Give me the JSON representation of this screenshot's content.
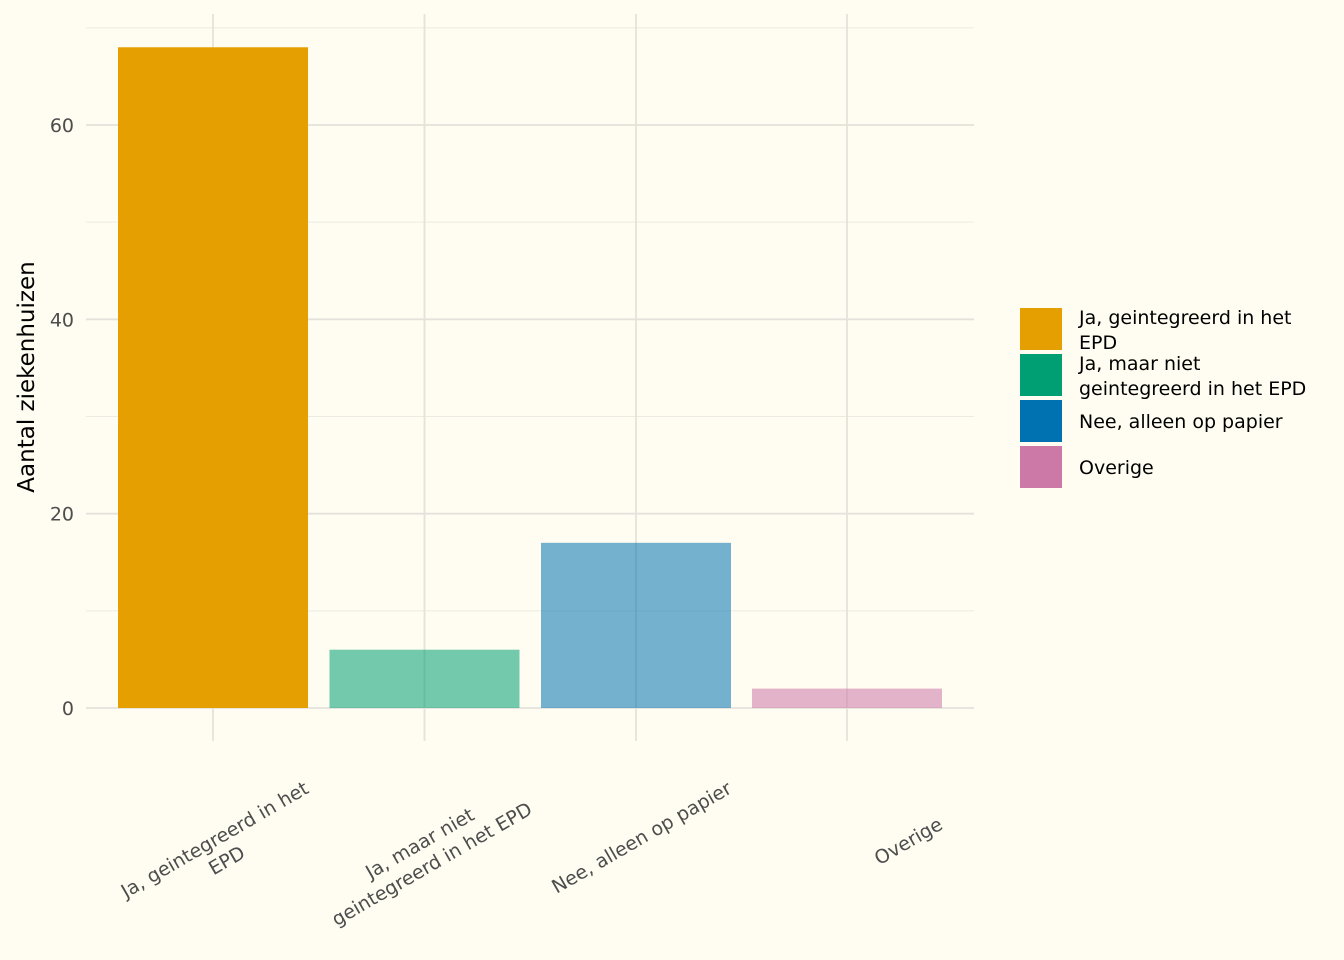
{
  "chart_data": {
    "type": "bar",
    "categories": [
      [
        "Ja, geintegreerd in het",
        "EPD"
      ],
      [
        "Ja, maar niet",
        "geintegreerd in het EPD"
      ],
      [
        "Nee, alleen op papier"
      ],
      [
        "Overige"
      ]
    ],
    "values": [
      68,
      6,
      17,
      2
    ],
    "colors": [
      "#E69F00",
      "#009E73",
      "#0072B2",
      "#CC79A7"
    ],
    "bar_opacity": [
      1.0,
      0.55,
      0.55,
      0.55
    ],
    "xlabel": "",
    "ylabel": "Aantal ziekenhuizen",
    "ylim": [
      0,
      70
    ],
    "yticks": [
      0,
      20,
      40,
      60
    ],
    "grid": true,
    "legend": {
      "placement": "right",
      "entries": [
        [
          "Ja, geintegreerd in het",
          "EPD"
        ],
        [
          "Ja, maar niet",
          "geintegreerd in het EPD"
        ],
        [
          "Nee, alleen op papier"
        ],
        [
          "Overige"
        ]
      ]
    }
  }
}
